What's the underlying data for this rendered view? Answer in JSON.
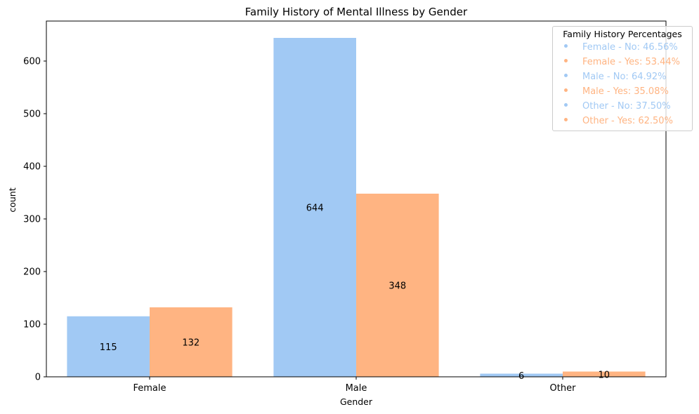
{
  "chart_data": {
    "type": "bar",
    "title": "Family History of Mental Illness by Gender",
    "xlabel": "Gender",
    "ylabel": "count",
    "categories": [
      "Female",
      "Male",
      "Other"
    ],
    "ylim": [
      0,
      676
    ],
    "yticks": [
      0,
      100,
      200,
      300,
      400,
      500,
      600
    ],
    "series": [
      {
        "key": "No",
        "color": "#a1c9f4",
        "values": [
          115,
          644,
          6
        ],
        "labels": [
          "115",
          "644",
          "6"
        ]
      },
      {
        "key": "Yes",
        "color": "#ffb482",
        "values": [
          132,
          348,
          10
        ],
        "labels": [
          "132",
          "348",
          "10"
        ]
      }
    ],
    "legend": {
      "title": "Family History Percentages",
      "position": "top-right",
      "entries": [
        {
          "text": "Female - No: 46.56%",
          "color": "#a1c9f4"
        },
        {
          "text": "Female - Yes: 53.44%",
          "color": "#ffb482"
        },
        {
          "text": "Male - No: 64.92%",
          "color": "#a1c9f4"
        },
        {
          "text": "Male - Yes: 35.08%",
          "color": "#ffb482"
        },
        {
          "text": "Other - No: 37.50%",
          "color": "#a1c9f4"
        },
        {
          "text": "Other - Yes: 62.50%",
          "color": "#ffb482"
        }
      ]
    }
  }
}
